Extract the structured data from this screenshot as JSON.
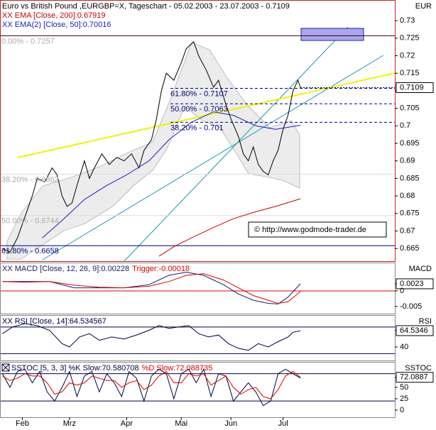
{
  "chart_data": [
    {
      "type": "line",
      "title": "Euro vs British Pound ,EURGBP=X, Tageschart - 05.02.2003 - 23.07.2003 - 0.7109",
      "axis_header": "EUR",
      "copyright": "© http://www.godmode-trader.de",
      "legend_layout": "column",
      "last_value_box": true,
      "xlim": [
        0,
        159
      ],
      "ylim": [
        0.6614,
        0.7359
      ],
      "yticks": [
        0.665,
        0.67,
        0.675,
        0.68,
        0.685,
        0.69,
        0.695,
        0.7,
        0.705,
        0.71,
        0.715,
        0.72,
        0.725,
        0.73
      ],
      "annotations": [
        {
          "label": "0.00% - 0.7257",
          "value": 0.7257,
          "color": "#aaaaaa",
          "line_color": "#400000",
          "anchor": "left"
        },
        {
          "label": "61.80% - 0.7107",
          "value": 0.7107,
          "color": "#000080",
          "line_color": "#000080",
          "anchor": "middle"
        },
        {
          "label": "50.00% - 0.7063",
          "value": 0.7063,
          "color": "#000080",
          "line_color": "#000080",
          "anchor": "middle"
        },
        {
          "label": "38.20% - 0.701",
          "value": 0.701,
          "color": "#000080",
          "line_color": "#000080",
          "anchor": "middle"
        },
        {
          "label": "38.20% - 0.6862",
          "value": 0.6862,
          "color": "#aaaaaa",
          "line_color": "#dddddd",
          "anchor": "left"
        },
        {
          "label": "50.00% - 0.6744",
          "value": 0.6744,
          "color": "#aaaaaa",
          "line_color": "#dddddd",
          "anchor": "left"
        },
        {
          "label": "61.80% - 0.6658",
          "value": 0.6658,
          "color": "#000080",
          "line_color": "#000080",
          "anchor": "left"
        }
      ],
      "series": [
        {
          "color": "#000000",
          "x": [
            1,
            4,
            7,
            10,
            13,
            15,
            18,
            21,
            23,
            25,
            27,
            29,
            31,
            34,
            36,
            38,
            41,
            44,
            47,
            50,
            53,
            56,
            58,
            61,
            63,
            65,
            67,
            70,
            73,
            75,
            78,
            80,
            83,
            86,
            88,
            91,
            93,
            96,
            98,
            100,
            102,
            104,
            106,
            108,
            110,
            112,
            114,
            116,
            118,
            120,
            121
          ],
          "values": [
            0.665,
            0.664,
            0.668,
            0.674,
            0.68,
            0.685,
            0.684,
            0.688,
            0.686,
            0.68,
            0.677,
            0.678,
            0.683,
            0.69,
            0.685,
            0.688,
            0.692,
            0.689,
            0.691,
            0.69,
            0.692,
            0.688,
            0.693,
            0.696,
            0.702,
            0.71,
            0.715,
            0.713,
            0.718,
            0.722,
            0.724,
            0.72,
            0.716,
            0.711,
            0.713,
            0.706,
            0.702,
            0.697,
            0.692,
            0.69,
            0.694,
            0.689,
            0.687,
            0.686,
            0.69,
            0.693,
            0.699,
            0.703,
            0.71,
            0.713,
            0.7109
          ]
        },
        {
          "name": "XX EMA [Close, 200]:0.67919",
          "color": "#cc0000",
          "x": [
            64,
            70,
            77,
            86,
            94,
            103,
            111,
            121
          ],
          "values": [
            0.6628,
            0.6655,
            0.668,
            0.671,
            0.6735,
            0.6755,
            0.677,
            0.67919
          ]
        },
        {
          "name": "XX EMA(2) [Close, 50]:0.70016",
          "color": "#1c1cc8",
          "x": [
            17,
            25,
            34,
            43,
            51,
            60,
            68,
            77,
            86,
            94,
            103,
            111,
            121
          ],
          "values": [
            0.668,
            0.673,
            0.679,
            0.683,
            0.686,
            0.69,
            0.696,
            0.701,
            0.704,
            0.703,
            0.7,
            0.699,
            0.70016
          ]
        }
      ]
    },
    {
      "type": "line",
      "axis_header": "MACD",
      "legend_layout": "row",
      "xlim": [
        0,
        159
      ],
      "ylim": [
        -0.0073,
        0.0091
      ],
      "yticks": [
        {
          "value": 0.00228,
          "label": "0.0023"
        },
        0,
        -0.005
      ],
      "levels": [
        0
      ],
      "level_color": "#dd0000",
      "series": [
        {
          "name": "XX MACD [Close, 12, 26, 9]:0.00228",
          "color": "#1a1a6e",
          "x": [
            1,
            10,
            20,
            30,
            40,
            50,
            60,
            68,
            75,
            82,
            90,
            96,
            102,
            108,
            112,
            116,
            121
          ],
          "values": [
            0.003,
            0.003,
            0.003,
            0.001,
            0.001,
            0.001,
            0.002,
            0.005,
            0.006,
            0.005,
            0.002,
            -0.001,
            -0.003,
            -0.004,
            -0.0042,
            -0.002,
            0.00228
          ]
        },
        {
          "name": "Trigger:-0.00018",
          "color": "#dd0000",
          "x": [
            1,
            10,
            20,
            30,
            40,
            50,
            60,
            68,
            75,
            82,
            90,
            96,
            102,
            108,
            112,
            116,
            121
          ],
          "values": [
            0.003,
            0.0028,
            0.003,
            0.0018,
            0.0012,
            0.001,
            0.0015,
            0.003,
            0.005,
            0.0055,
            0.0035,
            0.001,
            -0.0015,
            -0.003,
            -0.004,
            -0.0035,
            -0.00018
          ]
        }
      ]
    },
    {
      "type": "line",
      "axis_header": "RSI",
      "legend_layout": "row",
      "xlim": [
        0,
        159
      ],
      "ylim": [
        19.8,
        87.9
      ],
      "yticks": [
        {
          "value": 64.534567,
          "label": "64.5346"
        },
        40
      ],
      "levels": [
        70,
        30
      ],
      "level_color": "#000040",
      "series": [
        {
          "name": "XX RSI [Close, 14]:64.534567",
          "color": "#000040",
          "x": [
            1,
            5,
            10,
            15,
            20,
            25,
            28,
            32,
            36,
            40,
            45,
            50,
            55,
            60,
            64,
            68,
            72,
            76,
            80,
            84,
            88,
            92,
            96,
            100,
            104,
            108,
            112,
            116,
            118,
            121
          ],
          "values": [
            60,
            70,
            75,
            72,
            65,
            45,
            40,
            55,
            60,
            50,
            55,
            52,
            58,
            65,
            72,
            68,
            70,
            72,
            60,
            55,
            58,
            45,
            38,
            35,
            45,
            40,
            48,
            55,
            62,
            64.534567
          ]
        }
      ]
    },
    {
      "type": "line",
      "axis_header": "SSTOC",
      "legend_layout": "row",
      "xlim": [
        0,
        159
      ],
      "ylim": [
        -15.6,
        106
      ],
      "yticks": [
        {
          "value": 72.088735,
          "label": "72.0887"
        },
        50,
        25,
        0
      ],
      "xticks": [
        {
          "value": 9,
          "label": "Feb"
        },
        {
          "value": 28,
          "label": "Mrz"
        },
        {
          "value": 51,
          "label": "Apr"
        },
        {
          "value": 73,
          "label": "Mai"
        },
        {
          "value": 93,
          "label": "Jun"
        },
        {
          "value": 114,
          "label": "Jul"
        }
      ],
      "levels": [
        80,
        20
      ],
      "level_color": "#000040",
      "series": [
        {
          "name": "SSTOC [5, 3, 3] %K Slow:70.580708",
          "color": "#000040",
          "x": [
            1,
            4,
            7,
            10,
            13,
            16,
            19,
            22,
            25,
            28,
            31,
            34,
            37,
            40,
            43,
            46,
            49,
            52,
            55,
            58,
            61,
            64,
            67,
            70,
            73,
            76,
            79,
            82,
            85,
            88,
            91,
            94,
            97,
            100,
            103,
            106,
            109,
            112,
            115,
            118,
            121
          ],
          "values": [
            80,
            50,
            85,
            90,
            60,
            85,
            40,
            20,
            50,
            85,
            30,
            75,
            85,
            40,
            80,
            60,
            30,
            85,
            70,
            20,
            75,
            90,
            80,
            25,
            80,
            90,
            60,
            90,
            30,
            80,
            75,
            20,
            40,
            60,
            40,
            10,
            20,
            80,
            90,
            80,
            70.580708
          ]
        },
        {
          "name": "%D Slow:72.088735",
          "color": "#dd0000",
          "x": [
            1,
            4,
            7,
            10,
            13,
            16,
            19,
            22,
            25,
            28,
            31,
            34,
            37,
            40,
            43,
            46,
            49,
            52,
            55,
            58,
            61,
            64,
            67,
            70,
            73,
            76,
            79,
            82,
            85,
            88,
            91,
            94,
            97,
            100,
            103,
            106,
            109,
            112,
            115,
            118,
            121
          ],
          "values": [
            75,
            65,
            70,
            80,
            75,
            75,
            60,
            35,
            40,
            60,
            55,
            60,
            75,
            70,
            65,
            65,
            50,
            60,
            65,
            45,
            55,
            75,
            85,
            60,
            60,
            80,
            75,
            80,
            55,
            65,
            75,
            50,
            35,
            45,
            50,
            30,
            25,
            45,
            75,
            85,
            72.088735
          ]
        }
      ]
    }
  ]
}
